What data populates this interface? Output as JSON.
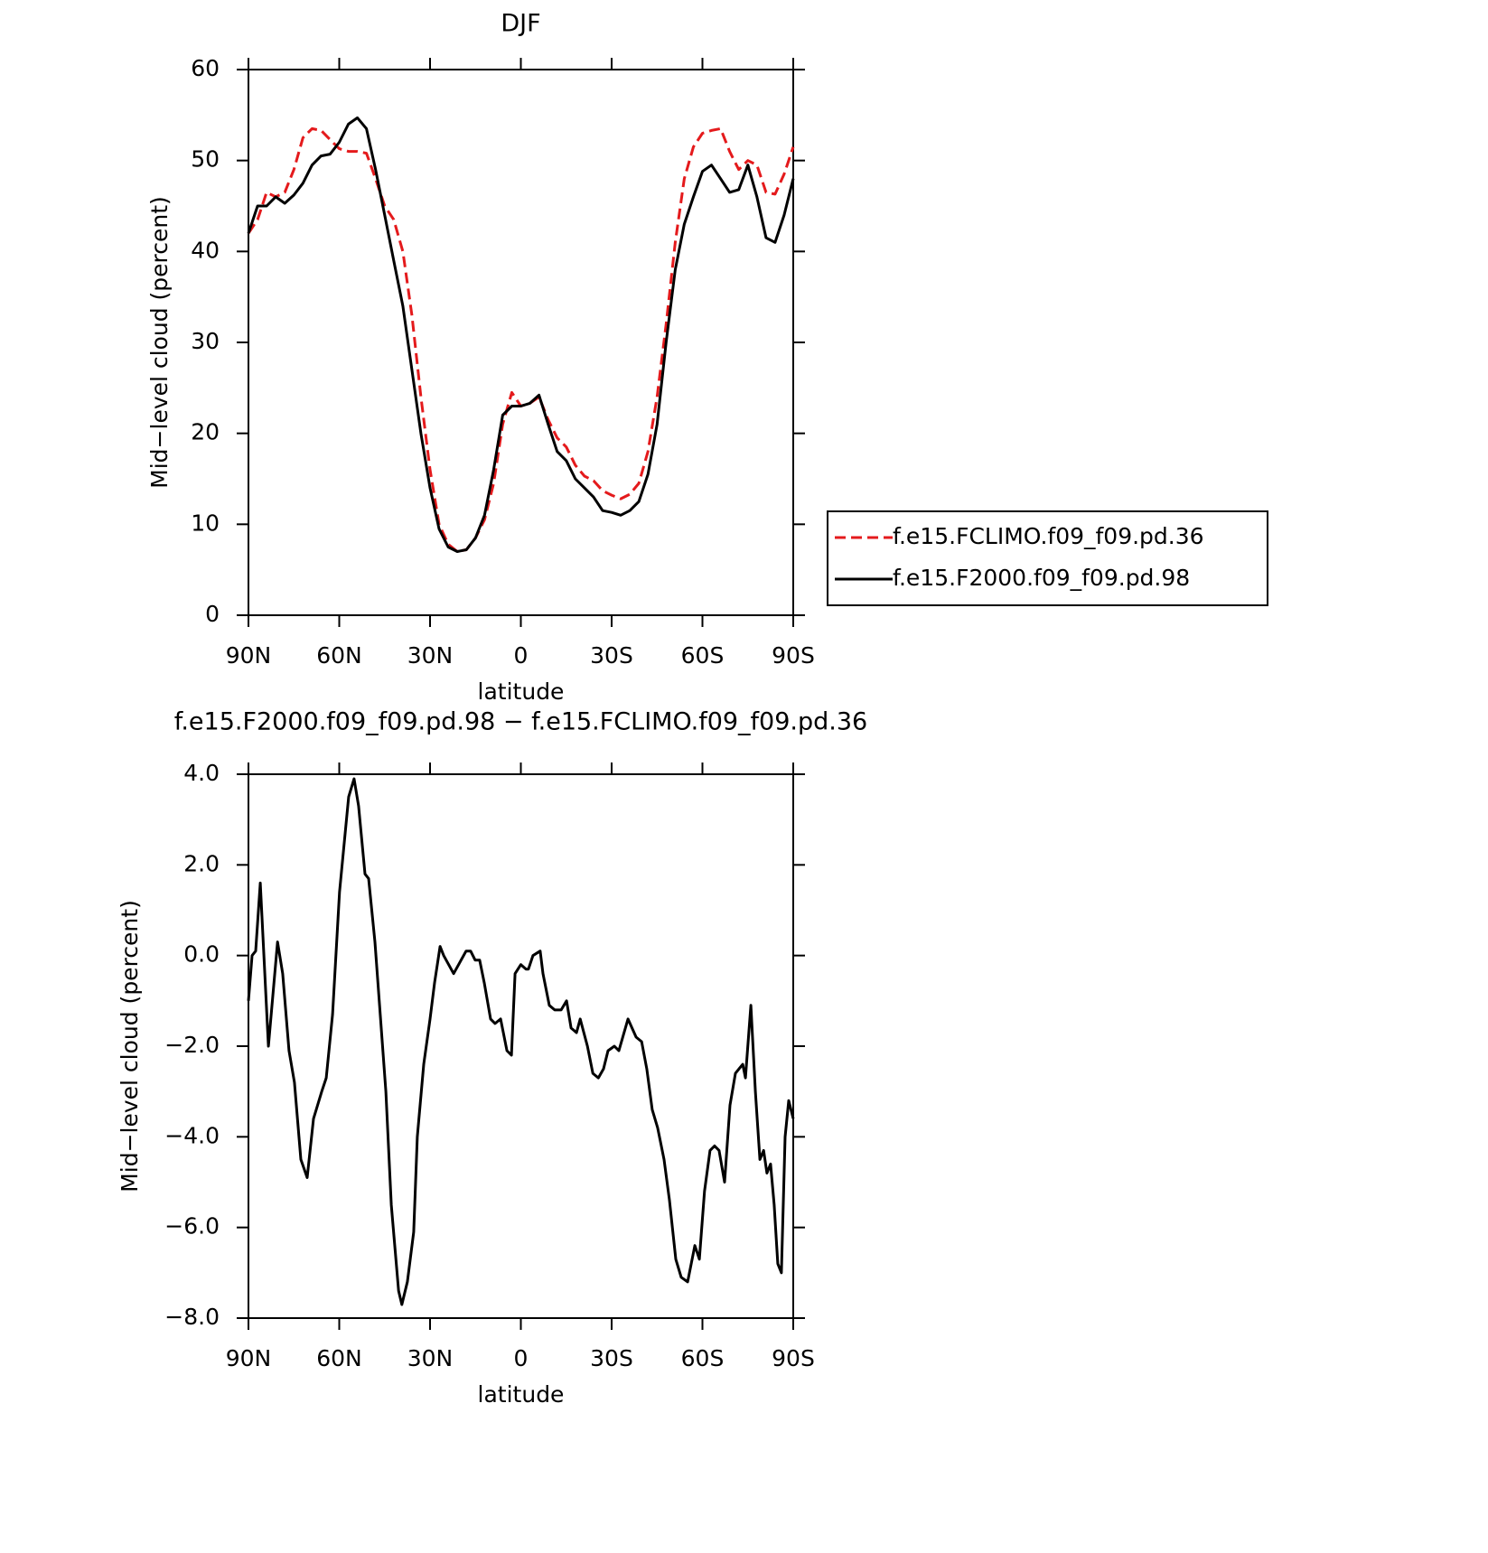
{
  "chart_data": [
    {
      "type": "line",
      "title": "DJF",
      "xlabel": "latitude",
      "ylabel": "Mid−level cloud (percent)",
      "x": [
        90,
        87,
        84,
        81,
        78,
        75,
        72,
        69,
        66,
        63,
        60,
        57,
        54,
        51,
        48,
        45,
        42,
        39,
        36,
        33,
        30,
        27,
        24,
        21,
        18,
        15,
        12,
        9,
        6,
        3,
        0,
        -3,
        -6,
        -9,
        -12,
        -15,
        -18,
        -21,
        -24,
        -27,
        -30,
        -33,
        -36,
        -39,
        -42,
        -45,
        -48,
        -51,
        -54,
        -57,
        -60,
        -63,
        -66,
        -69,
        -72,
        -75,
        -78,
        -81,
        -84,
        -87,
        -90
      ],
      "xlim": [
        90,
        -90
      ],
      "xticks": [
        {
          "value": 90,
          "label": "90N"
        },
        {
          "value": 60,
          "label": "60N"
        },
        {
          "value": 30,
          "label": "30N"
        },
        0,
        {
          "value": -30,
          "label": "30S"
        },
        {
          "value": -60,
          "label": "60S"
        },
        {
          "value": -90,
          "label": "90S"
        }
      ],
      "ylim": [
        0,
        60
      ],
      "yticks": [
        0,
        10,
        20,
        30,
        40,
        50,
        60
      ],
      "legend": "right",
      "series": [
        {
          "name": "f.e15.FCLIMO.f09_f09.pd.36",
          "color": "#e41a1c",
          "line_style": "dashed",
          "values": [
            42,
            43.5,
            46.5,
            46,
            46.5,
            49,
            52.5,
            53.5,
            53.3,
            52.3,
            51.3,
            51,
            51,
            50.8,
            48,
            45,
            43.5,
            40,
            33,
            24,
            16,
            10,
            7.8,
            7,
            7.2,
            8.5,
            10.5,
            14.5,
            21,
            24.5,
            23,
            23.3,
            24,
            21.5,
            19.5,
            18.5,
            16.5,
            15.3,
            14.8,
            13.7,
            13.2,
            12.8,
            13.3,
            14.5,
            18,
            24,
            32,
            41,
            48,
            51.5,
            53,
            53.3,
            53.5,
            51,
            49,
            50,
            49.5,
            46.5,
            46.3,
            48.5,
            51.5
          ]
        },
        {
          "name": "f.e15.F2000.f09_f09.pd.98",
          "color": "#000000",
          "line_style": "solid",
          "values": [
            42,
            45,
            45,
            46,
            45.3,
            46.2,
            47.5,
            49.5,
            50.5,
            50.7,
            52,
            54,
            54.7,
            53.5,
            49,
            44,
            39,
            34,
            27,
            20,
            14,
            9.5,
            7.5,
            7,
            7.2,
            8.5,
            11,
            16,
            22,
            23,
            23,
            23.3,
            24.2,
            21,
            18,
            17,
            15,
            14,
            13,
            11.5,
            11.3,
            11,
            11.5,
            12.5,
            15.5,
            21,
            30,
            38,
            43,
            46,
            48.8,
            49.5,
            48,
            46.5,
            46.8,
            49.5,
            46,
            41.5,
            41,
            44,
            48
          ]
        }
      ]
    },
    {
      "type": "line",
      "title": "f.e15.F2000.f09_f09.pd.98 − f.e15.FCLIMO.f09_f09.pd.36",
      "xlabel": "latitude",
      "ylabel": "Mid−level cloud (percent)",
      "x": [
        90,
        88.8,
        87.6,
        86.1,
        83.4,
        80.4,
        78.7,
        76.6,
        74.8,
        72.7,
        70.6,
        68.5,
        65.8,
        64.3,
        62.2,
        59.9,
        56.9,
        55.1,
        53.6,
        51.5,
        50.3,
        48.2,
        44.6,
        42.8,
        40.4,
        39.3,
        37.5,
        35.4,
        34.2,
        32.1,
        30,
        28.5,
        26.7,
        25.5,
        22.2,
        18.1,
        16.6,
        15.1,
        13.6,
        12.1,
        10,
        8.5,
        6.7,
        4.6,
        3.1,
        1.9,
        0,
        -1.7,
        -2.5,
        -4,
        -6.4,
        -7.3,
        -9.4,
        -11.2,
        -13.3,
        -15.1,
        -16.6,
        -18.4,
        -19.6,
        -22,
        -23.8,
        -25.6,
        -27.3,
        -28.8,
        -30.9,
        -32.4,
        -35.4,
        -38.1,
        -39.9,
        -41.6,
        -43.4,
        -45.2,
        -47.3,
        -49.1,
        -51.2,
        -53,
        -55.1,
        -57.5,
        -59,
        -60.7,
        -62.5,
        -64,
        -65.5,
        -67.3,
        -69.1,
        -70.9,
        -72.1,
        -73.3,
        -74.2,
        -76,
        -77.5,
        -79,
        -80.2,
        -81.3,
        -82.5,
        -83.7,
        -84.9,
        -86.1,
        -87.3,
        -88.5,
        -90
      ],
      "xlim": [
        90,
        -90
      ],
      "xticks": [
        {
          "value": 90,
          "label": "90N"
        },
        {
          "value": 60,
          "label": "60N"
        },
        {
          "value": 30,
          "label": "30N"
        },
        0,
        {
          "value": -30,
          "label": "30S"
        },
        {
          "value": -60,
          "label": "60S"
        },
        {
          "value": -90,
          "label": "90S"
        }
      ],
      "ylim": [
        -8,
        4
      ],
      "yticks": [
        {
          "value": -8,
          "label": "−8.0"
        },
        {
          "value": -6,
          "label": "−6.0"
        },
        {
          "value": -4,
          "label": "−4.0"
        },
        {
          "value": -2,
          "label": "−2.0"
        },
        {
          "value": 0,
          "label": "0.0"
        },
        {
          "value": 2,
          "label": "2.0"
        },
        {
          "value": 4,
          "label": "4.0"
        }
      ],
      "series": [
        {
          "color": "#000000",
          "line_style": "solid",
          "values": [
            -1,
            0,
            0.1,
            1.6,
            -2,
            0.3,
            -0.4,
            -2.1,
            -2.8,
            -4.5,
            -4.9,
            -3.6,
            -3,
            -2.7,
            -1.3,
            1.4,
            3.5,
            3.9,
            3.3,
            1.8,
            1.7,
            0.3,
            -3,
            -5.5,
            -7.4,
            -7.7,
            -7.2,
            -6.1,
            -4,
            -2.4,
            -1.4,
            -0.6,
            0.2,
            0,
            -0.4,
            0.1,
            0.1,
            -0.1,
            -0.1,
            -0.6,
            -1.4,
            -1.5,
            -1.4,
            -2.1,
            -2.2,
            -0.4,
            -0.2,
            -0.3,
            -0.3,
            0,
            0.1,
            -0.4,
            -1.1,
            -1.2,
            -1.2,
            -1,
            -1.6,
            -1.7,
            -1.4,
            -2,
            -2.6,
            -2.7,
            -2.5,
            -2.1,
            -2,
            -2.1,
            -1.4,
            -1.8,
            -1.9,
            -2.5,
            -3.4,
            -3.8,
            -4.5,
            -5.4,
            -6.7,
            -7.1,
            -7.2,
            -6.4,
            -6.7,
            -5.2,
            -4.3,
            -4.2,
            -4.3,
            -5,
            -3.3,
            -2.6,
            -2.5,
            -2.4,
            -2.7,
            -1.1,
            -3,
            -4.5,
            -4.3,
            -4.8,
            -4.6,
            -5.5,
            -6.8,
            -7,
            -4,
            -3.2,
            -3.6
          ]
        }
      ]
    }
  ]
}
